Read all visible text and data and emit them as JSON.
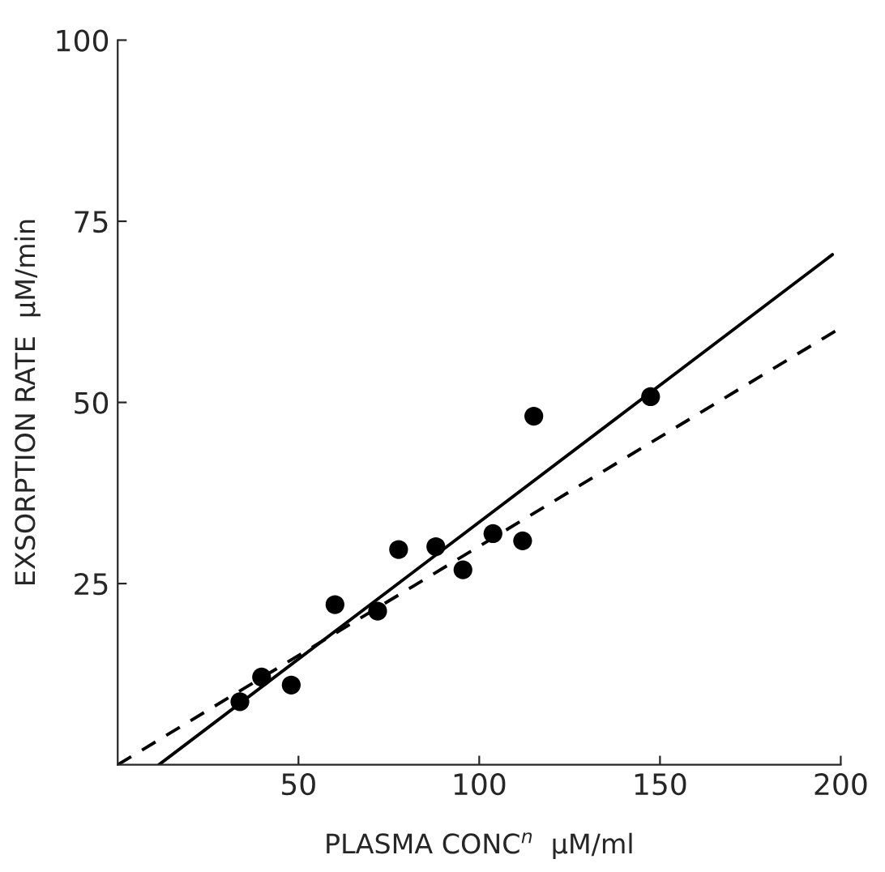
{
  "chart_data": {
    "type": "scatter",
    "xlabel": "PLASMA CONC$^{n}$  μM/ml",
    "ylabel": "EXSORPTION RATE  μM/min",
    "xlim": [
      0,
      200
    ],
    "ylim": [
      0,
      100
    ],
    "xticks": [
      50,
      100,
      150,
      200
    ],
    "yticks": [
      25,
      50,
      75,
      100
    ],
    "grid": false,
    "legend": false,
    "series": [
      {
        "color": "#000000",
        "marker": "circle",
        "x": [
          33.8,
          39.8,
          48.0,
          60.1,
          71.9,
          77.7,
          88.0,
          95.5,
          103.8,
          112.0,
          115.1,
          147.4
        ],
        "values": [
          8.7,
          12.1,
          11.0,
          22.1,
          21.2,
          29.7,
          30.1,
          26.9,
          31.9,
          30.9,
          48.1,
          50.8
        ]
      },
      {
        "type": "line",
        "color": "#000000",
        "line_style": "solid",
        "x": [
          11.4,
          197.7
        ],
        "values": [
          0,
          70.4
        ]
      },
      {
        "type": "line",
        "color": "#000000",
        "line_style": "dashed",
        "x": [
          0,
          200
        ],
        "values": [
          0,
          60.3
        ]
      }
    ]
  }
}
